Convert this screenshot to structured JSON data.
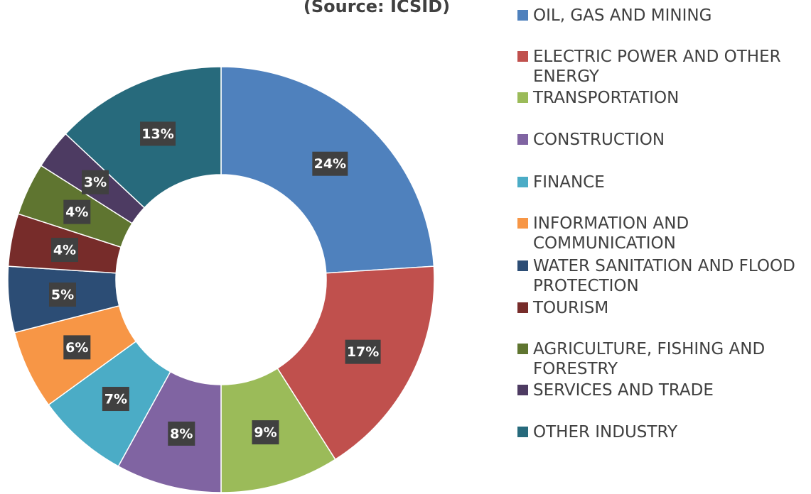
{
  "chart_data": {
    "type": "donut",
    "subtitle": "(Source: ICSID)",
    "categories": [
      "OIL, GAS AND MINING",
      "ELECTRIC POWER AND OTHER ENERGY",
      "TRANSPORTATION",
      "CONSTRUCTION",
      "FINANCE",
      "INFORMATION AND COMMUNICATION",
      "WATER SANITATION AND FLOOD PROTECTION",
      "TOURISM",
      "AGRICULTURE, FISHING AND FORESTRY",
      "SERVICES AND TRADE",
      "OTHER INDUSTRY"
    ],
    "values": [
      24,
      17,
      9,
      8,
      7,
      6,
      5,
      4,
      4,
      3,
      13
    ],
    "value_labels": [
      "24%",
      "17%",
      "9%",
      "8%",
      "7%",
      "6%",
      "5%",
      "4%",
      "4%",
      "3%",
      "13%"
    ],
    "colors": [
      "#4f81bd",
      "#c0504d",
      "#9bbb59",
      "#8064a2",
      "#4bacc6",
      "#f79646",
      "#2c4d75",
      "#772c2a",
      "#5f7530",
      "#4d3b62",
      "#276a7c"
    ],
    "legend": "right"
  }
}
